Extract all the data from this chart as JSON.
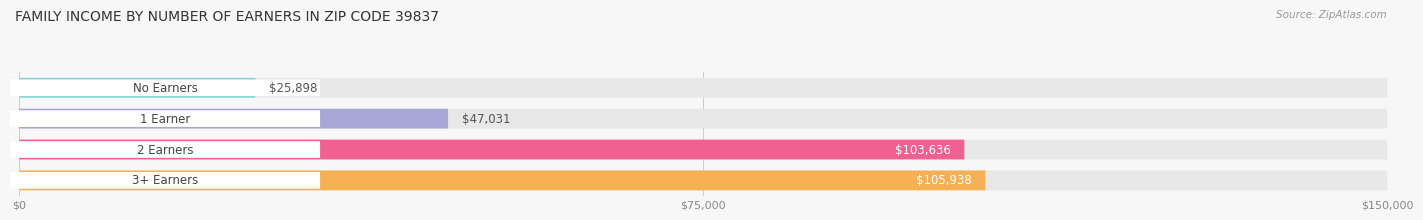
{
  "title": "FAMILY INCOME BY NUMBER OF EARNERS IN ZIP CODE 39837",
  "source": "Source: ZipAtlas.com",
  "categories": [
    "No Earners",
    "1 Earner",
    "2 Earners",
    "3+ Earners"
  ],
  "values": [
    25898,
    47031,
    103636,
    105938
  ],
  "labels": [
    "$25,898",
    "$47,031",
    "$103,636",
    "$105,938"
  ],
  "bar_colors": [
    "#7dd4d4",
    "#a8a8d8",
    "#f06090",
    "#f5b055"
  ],
  "label_colors": [
    "#555555",
    "#555555",
    "#ffffff",
    "#ffffff"
  ],
  "bar_bg_color": "#e8e8e8",
  "background_color": "#f7f7f7",
  "xlim": [
    0,
    150000
  ],
  "xticks": [
    0,
    75000,
    150000
  ],
  "xticklabels": [
    "$0",
    "$75,000",
    "$150,000"
  ],
  "title_fontsize": 10,
  "bar_height": 0.62,
  "label_fontsize": 8.5,
  "category_fontsize": 8.5
}
